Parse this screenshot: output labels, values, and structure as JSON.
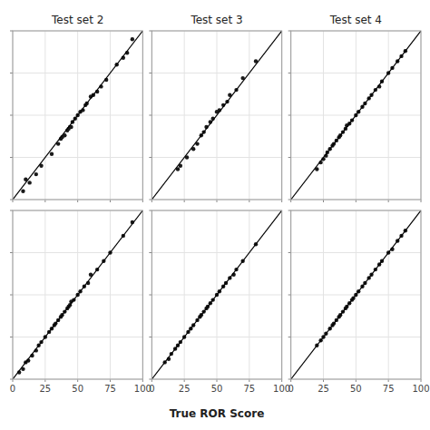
{
  "chart_data": [
    {
      "type": "scatter",
      "title": "Test set 2",
      "xlim": [
        0,
        100
      ],
      "ylim": [
        0,
        100
      ],
      "xticks": [
        0,
        25,
        50,
        75,
        100
      ],
      "yticks": [
        0,
        25,
        50,
        75,
        100
      ],
      "grid": true,
      "tick_labels": false,
      "series": [
        {
          "type": "scatter",
          "color": "#1a1a1a",
          "x": [
            8,
            10,
            13,
            18,
            22,
            30,
            35,
            37,
            38,
            40,
            42,
            43,
            44,
            45,
            46,
            48,
            50,
            52,
            54,
            56,
            57,
            60,
            62,
            65,
            68,
            72,
            80,
            85,
            88,
            92
          ],
          "values": [
            5,
            12,
            10,
            15,
            20,
            27,
            33,
            36,
            37,
            38,
            41,
            42,
            43,
            43,
            46,
            48,
            50,
            52,
            53,
            56,
            57,
            61,
            62,
            64,
            67,
            71,
            80,
            84,
            87,
            95
          ]
        },
        {
          "type": "line",
          "color": "#000000",
          "x": [
            0,
            100
          ],
          "values": [
            0,
            100
          ]
        }
      ]
    },
    {
      "type": "scatter",
      "title": "Test set 3",
      "xlim": [
        0,
        100
      ],
      "ylim": [
        0,
        100
      ],
      "xticks": [
        0,
        25,
        50,
        75,
        100
      ],
      "yticks": [
        0,
        25,
        50,
        75,
        100
      ],
      "grid": true,
      "tick_labels": false,
      "series": [
        {
          "type": "scatter",
          "color": "#1a1a1a",
          "x": [
            20,
            22,
            27,
            32,
            35,
            38,
            40,
            42,
            45,
            47,
            50,
            52,
            55,
            58,
            60,
            65,
            70,
            80
          ],
          "values": [
            18,
            20,
            25,
            30,
            33,
            38,
            40,
            43,
            46,
            48,
            52,
            53,
            56,
            58,
            62,
            65,
            72,
            82
          ]
        },
        {
          "type": "line",
          "color": "#000000",
          "x": [
            0,
            100
          ],
          "values": [
            0,
            100
          ]
        }
      ]
    },
    {
      "type": "scatter",
      "title": "Test set 4",
      "xlim": [
        0,
        100
      ],
      "ylim": [
        0,
        100
      ],
      "xticks": [
        0,
        25,
        50,
        75,
        100
      ],
      "yticks": [
        0,
        25,
        50,
        75,
        100
      ],
      "grid": true,
      "tick_labels": false,
      "series": [
        {
          "type": "scatter",
          "color": "#1a1a1a",
          "x": [
            20,
            23,
            25,
            27,
            28,
            30,
            32,
            33,
            35,
            37,
            38,
            40,
            42,
            43,
            45,
            47,
            50,
            52,
            55,
            57,
            60,
            62,
            65,
            68,
            70,
            75,
            78,
            82,
            85,
            88
          ],
          "values": [
            18,
            22,
            24,
            26,
            28,
            30,
            32,
            33,
            35,
            37,
            38,
            40,
            42,
            44,
            45,
            47,
            50,
            52,
            55,
            57,
            60,
            62,
            65,
            67,
            70,
            75,
            78,
            82,
            85,
            88
          ]
        },
        {
          "type": "line",
          "color": "#000000",
          "x": [
            0,
            100
          ],
          "values": [
            0,
            100
          ]
        }
      ]
    },
    {
      "type": "scatter",
      "xlim": [
        0,
        100
      ],
      "ylim": [
        0,
        100
      ],
      "xticks": [
        0,
        25,
        50,
        75,
        100
      ],
      "yticks": [
        0,
        25,
        50,
        75,
        100
      ],
      "grid": true,
      "tick_labels": "x",
      "series": [
        {
          "type": "scatter",
          "color": "#1a1a1a",
          "x": [
            5,
            8,
            10,
            12,
            15,
            18,
            20,
            22,
            25,
            28,
            30,
            32,
            33,
            35,
            37,
            38,
            40,
            42,
            43,
            44,
            45,
            47,
            50,
            52,
            55,
            58,
            60,
            65,
            70,
            75,
            85,
            92
          ],
          "values": [
            4,
            6,
            10,
            11,
            14,
            17,
            20,
            22,
            25,
            28,
            30,
            32,
            33,
            35,
            37,
            38,
            40,
            42,
            43,
            44,
            46,
            47,
            50,
            52,
            55,
            57,
            62,
            65,
            70,
            75,
            85,
            93
          ]
        },
        {
          "type": "line",
          "color": "#000000",
          "x": [
            0,
            100
          ],
          "values": [
            0,
            100
          ]
        }
      ]
    },
    {
      "type": "scatter",
      "xlabel": "True ROR Score",
      "xlim": [
        0,
        100
      ],
      "ylim": [
        0,
        100
      ],
      "xticks": [
        0,
        25,
        50,
        75,
        100
      ],
      "yticks": [
        0,
        25,
        50,
        75,
        100
      ],
      "grid": true,
      "tick_labels": "x",
      "series": [
        {
          "type": "scatter",
          "color": "#1a1a1a",
          "x": [
            10,
            13,
            15,
            18,
            20,
            22,
            25,
            28,
            30,
            32,
            35,
            37,
            38,
            40,
            42,
            43,
            45,
            47,
            50,
            52,
            55,
            57,
            60,
            63,
            65,
            70,
            80
          ],
          "values": [
            10,
            12,
            15,
            18,
            20,
            22,
            25,
            28,
            30,
            32,
            35,
            37,
            38,
            40,
            42,
            43,
            45,
            47,
            50,
            52,
            55,
            57,
            60,
            62,
            65,
            70,
            80
          ]
        },
        {
          "type": "line",
          "color": "#000000",
          "x": [
            0,
            100
          ],
          "values": [
            0,
            100
          ]
        }
      ]
    },
    {
      "type": "scatter",
      "xlim": [
        0,
        100
      ],
      "ylim": [
        0,
        100
      ],
      "xticks": [
        0,
        25,
        50,
        75,
        100
      ],
      "yticks": [
        0,
        25,
        50,
        75,
        100
      ],
      "grid": true,
      "tick_labels": "x",
      "series": [
        {
          "type": "scatter",
          "color": "#1a1a1a",
          "x": [
            20,
            23,
            25,
            27,
            30,
            32,
            33,
            35,
            37,
            38,
            40,
            42,
            43,
            45,
            47,
            48,
            50,
            52,
            55,
            57,
            60,
            62,
            65,
            68,
            70,
            75,
            78,
            82,
            85,
            88
          ],
          "values": [
            20,
            23,
            25,
            27,
            30,
            32,
            33,
            35,
            37,
            38,
            40,
            42,
            43,
            45,
            47,
            48,
            50,
            52,
            55,
            57,
            60,
            62,
            65,
            68,
            70,
            75,
            77,
            82,
            85,
            88
          ]
        },
        {
          "type": "line",
          "color": "#000000",
          "x": [
            0,
            100
          ],
          "values": [
            0,
            100
          ]
        }
      ]
    }
  ]
}
